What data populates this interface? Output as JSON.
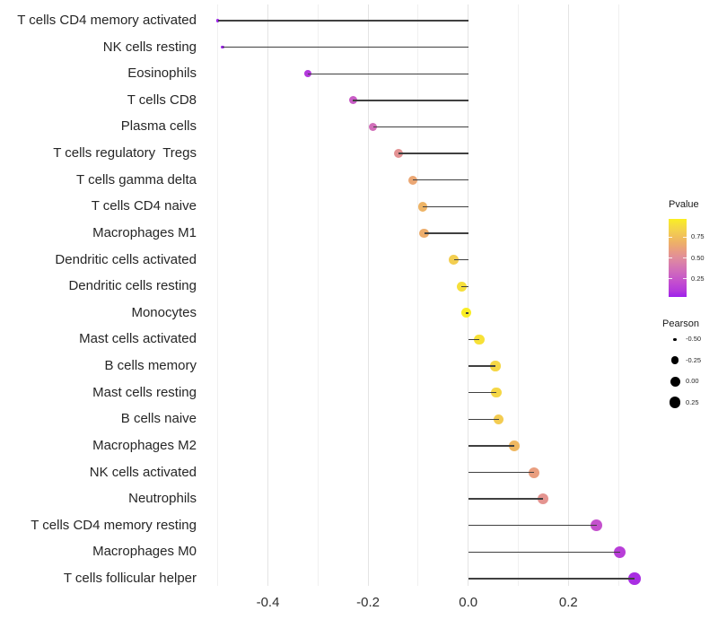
{
  "chart_data": {
    "type": "scatter",
    "variant": "lollipop",
    "title": "",
    "xlabel": "",
    "ylabel": "",
    "x_tick_labels": [
      "-0.4",
      "-0.2",
      "0.0",
      "0.2"
    ],
    "x_ticks": [
      -0.4,
      -0.2,
      0.0,
      0.2
    ],
    "xlim": [
      -0.52,
      0.36
    ],
    "grid_positions": [
      -0.5,
      -0.4,
      -0.3,
      -0.2,
      -0.1,
      0.0,
      0.1,
      0.2,
      0.3
    ],
    "grid_major": [
      -0.4,
      -0.2,
      0.0,
      0.2
    ],
    "grid_on": true,
    "rows": [
      {
        "label": "T cells CD4 memory activated",
        "pearson": -0.5,
        "pvalue": 0.02
      },
      {
        "label": "NK cells resting",
        "pearson": -0.49,
        "pvalue": 0.02
      },
      {
        "label": "Eosinophils",
        "pearson": -0.32,
        "pvalue": 0.1
      },
      {
        "label": "T cells CD8",
        "pearson": -0.23,
        "pvalue": 0.27
      },
      {
        "label": "Plasma cells",
        "pearson": -0.19,
        "pvalue": 0.35
      },
      {
        "label": "T cells regulatory  Tregs",
        "pearson": -0.14,
        "pvalue": 0.53
      },
      {
        "label": "T cells gamma delta",
        "pearson": -0.11,
        "pvalue": 0.64
      },
      {
        "label": "T cells CD4 naive",
        "pearson": -0.091,
        "pvalue": 0.7
      },
      {
        "label": "Macrophages M1",
        "pearson": -0.088,
        "pvalue": 0.67
      },
      {
        "label": "Dendritic cells activated",
        "pearson": -0.029,
        "pvalue": 0.82
      },
      {
        "label": "Dendritic cells resting",
        "pearson": -0.013,
        "pvalue": 0.9
      },
      {
        "label": "Monocytes",
        "pearson": -0.004,
        "pvalue": 0.96
      },
      {
        "label": "Mast cells activated",
        "pearson": 0.022,
        "pvalue": 0.91
      },
      {
        "label": "B cells memory",
        "pearson": 0.054,
        "pvalue": 0.86
      },
      {
        "label": "Mast cells resting",
        "pearson": 0.056,
        "pvalue": 0.86
      },
      {
        "label": "B cells naive",
        "pearson": 0.061,
        "pvalue": 0.81
      },
      {
        "label": "Macrophages M2",
        "pearson": 0.092,
        "pvalue": 0.72
      },
      {
        "label": "NK cells activated",
        "pearson": 0.131,
        "pvalue": 0.6
      },
      {
        "label": "Neutrophils",
        "pearson": 0.149,
        "pvalue": 0.54
      },
      {
        "label": "T cells CD4 memory resting",
        "pearson": 0.256,
        "pvalue": 0.22
      },
      {
        "label": "Macrophages M0",
        "pearson": 0.303,
        "pvalue": 0.13
      },
      {
        "label": "T cells follicular helper",
        "pearson": 0.332,
        "pvalue": 0.07
      }
    ],
    "legend_color": {
      "title": "Pvalue",
      "tick_labels": [
        "0.75",
        "0.50",
        "0.25"
      ],
      "tick_values": [
        0.75,
        0.5,
        0.25
      ],
      "bar_domain": [
        0.03,
        0.97
      ],
      "gradient_stops": [
        {
          "p": 0.03,
          "color": "#9C20EC"
        },
        {
          "p": 0.1,
          "color": "#B338DC"
        },
        {
          "p": 0.2,
          "color": "#C24CD0"
        },
        {
          "p": 0.3,
          "color": "#CC63C1"
        },
        {
          "p": 0.4,
          "color": "#D678B1"
        },
        {
          "p": 0.5,
          "color": "#E08D9C"
        },
        {
          "p": 0.58,
          "color": "#E89A85"
        },
        {
          "p": 0.66,
          "color": "#ECAB6E"
        },
        {
          "p": 0.74,
          "color": "#F0BC5D"
        },
        {
          "p": 0.82,
          "color": "#F3CE50"
        },
        {
          "p": 0.9,
          "color": "#F6DF3B"
        },
        {
          "p": 0.97,
          "color": "#FAEF21"
        }
      ]
    },
    "legend_size": {
      "title": "Pearson",
      "items": [
        {
          "label": "-0.50",
          "value": -0.5
        },
        {
          "label": "-0.25",
          "value": -0.25
        },
        {
          "label": "0.00",
          "value": 0.0
        },
        {
          "label": "0.25",
          "value": 0.25
        }
      ],
      "dot_color": "#000000"
    },
    "style_colors": {
      "segment": "#404040",
      "axis_text": "#262626",
      "grid_major": "#E4E4E4",
      "grid_minor": "#F0F0F0",
      "background": "#FFFFFF"
    }
  }
}
